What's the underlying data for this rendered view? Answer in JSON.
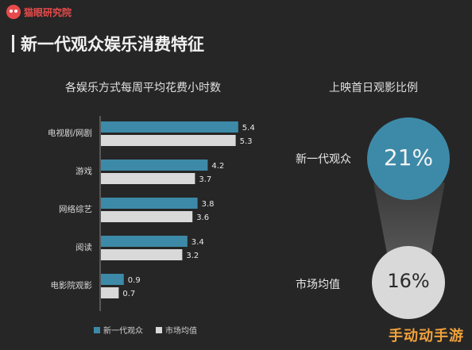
{
  "brand": "猫眼研究院",
  "page_title": "新一代观众娱乐消费特征",
  "colors": {
    "new_gen": "#3d8aa8",
    "market_avg": "#d9d9d9",
    "brand": "#e84b4b"
  },
  "chart_data": [
    {
      "type": "bar",
      "orientation": "horizontal",
      "title": "各娱乐方式每周平均花费小时数",
      "categories": [
        "电视剧/网剧",
        "游戏",
        "网络综艺",
        "阅读",
        "电影院观影"
      ],
      "series": [
        {
          "name": "新一代观众",
          "values": [
            5.4,
            4.2,
            3.8,
            3.4,
            0.9
          ]
        },
        {
          "name": "市场均值",
          "values": [
            5.3,
            3.7,
            3.6,
            3.2,
            0.7
          ]
        }
      ],
      "legend": "bottom"
    },
    {
      "type": "pie",
      "title": "上映首日观影比例",
      "items": [
        {
          "label": "新一代观众",
          "value": 21,
          "display": "21%"
        },
        {
          "label": "市场均值",
          "value": 16,
          "display": "16%"
        }
      ]
    }
  ],
  "watermark": "手动动手游"
}
